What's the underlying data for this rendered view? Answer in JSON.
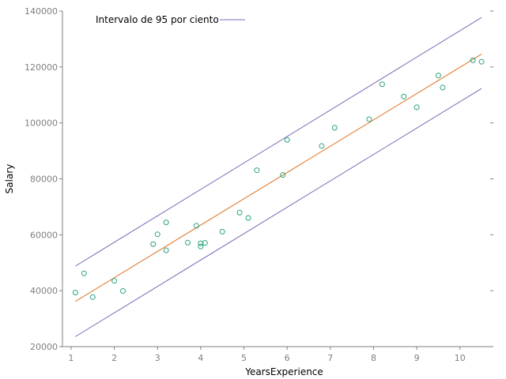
{
  "chart_data": {
    "type": "scatter",
    "xlabel": "YearsExperience",
    "ylabel": "Salary",
    "xlim": [
      0.8,
      10.7
    ],
    "ylim": [
      20000,
      140000
    ],
    "xticks": [
      "1",
      "2",
      "3",
      "4",
      "5",
      "6",
      "7",
      "8",
      "9",
      "10"
    ],
    "yticks": [
      "20000",
      "40000",
      "60000",
      "80000",
      "100000",
      "120000",
      "140000"
    ],
    "grid": false,
    "legend": {
      "position": "top-left",
      "entries": [
        "Intervalo de 95 por ciento"
      ]
    },
    "colors": {
      "points": "#2aa27e",
      "fit": "#e0701f",
      "interval": "#7b68b8",
      "axis": "#7f7f7f"
    },
    "points": {
      "x": [
        1.1,
        1.3,
        1.5,
        2.0,
        2.2,
        2.9,
        3.0,
        3.2,
        3.2,
        3.7,
        3.9,
        4.0,
        4.0,
        4.1,
        4.5,
        4.9,
        5.1,
        5.3,
        5.9,
        6.0,
        6.8,
        7.1,
        7.9,
        8.2,
        8.7,
        9.0,
        9.5,
        9.6,
        10.3,
        10.5
      ],
      "y": [
        39343,
        46205,
        37731,
        43525,
        39891,
        56642,
        60150,
        54445,
        64445,
        57189,
        63218,
        55794,
        56957,
        57081,
        61111,
        67938,
        66029,
        83088,
        81363,
        93940,
        91738,
        98273,
        101302,
        113812,
        109431,
        105582,
        116969,
        112635,
        122391,
        121872
      ]
    },
    "fit": {
      "x": [
        1.1,
        10.5
      ],
      "y": [
        36187,
        124591
      ]
    },
    "interval": {
      "upper": {
        "x": [
          1.1,
          10.5
        ],
        "y": [
          48800,
          137700
        ]
      },
      "lower": {
        "x": [
          1.1,
          10.5
        ],
        "y": [
          23600,
          112300
        ]
      }
    }
  }
}
